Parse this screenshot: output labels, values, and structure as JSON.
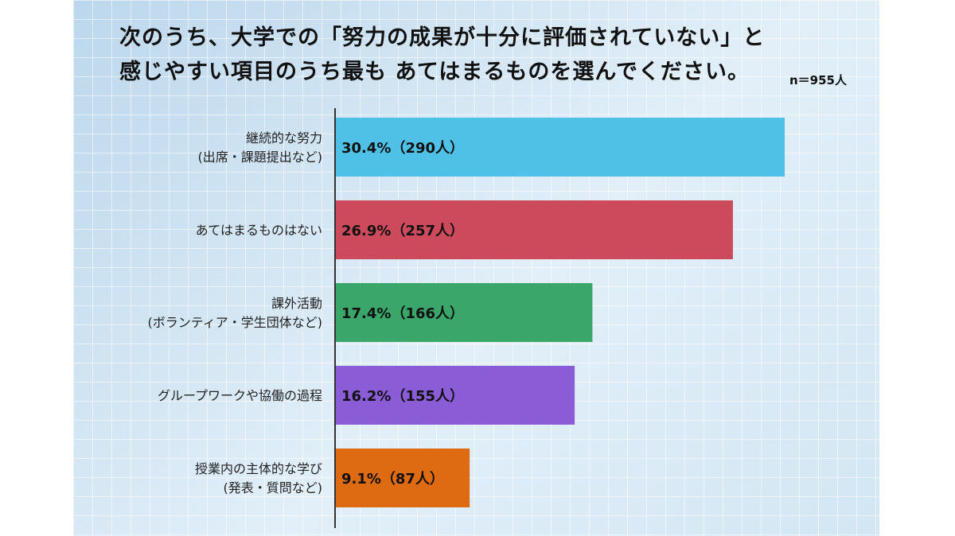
{
  "title_lines": [
    "次のうち、大学での「努力の成果が十分に評価されていない」と",
    "感じやすい項目のうち最も あてはまるものを選んでください。"
  ],
  "sample_note": "n＝955人",
  "chart_data": {
    "type": "bar",
    "orientation": "horizontal",
    "title": "次のうち、大学での「努力の成果が十分に評価されていない」と感じやすい項目のうち最もあてはまるものを選んでください。",
    "categories": [
      [
        "継続的な努力",
        "(出席・課題提出など)"
      ],
      [
        "あてはまるものはない"
      ],
      [
        "課外活動",
        "(ボランティア・学生団体など)"
      ],
      [
        "グループワークや協働の過程"
      ],
      [
        "授業内の主体的な学び",
        "(発表・質問など)"
      ]
    ],
    "values": [
      30.4,
      26.9,
      17.4,
      16.2,
      9.1
    ],
    "counts": [
      290,
      257,
      166,
      155,
      87
    ],
    "data_labels": [
      "30.4%（290人）",
      "26.9%（257人）",
      "17.4%（166人）",
      "16.2%（155人）",
      "9.1%（87人）"
    ],
    "colors": [
      "#4fc1e6",
      "#cc4a5c",
      "#3aa66a",
      "#8a5cd6",
      "#de6a12"
    ],
    "xlim": [
      0,
      30.4
    ],
    "grid": false,
    "legend": "none"
  }
}
